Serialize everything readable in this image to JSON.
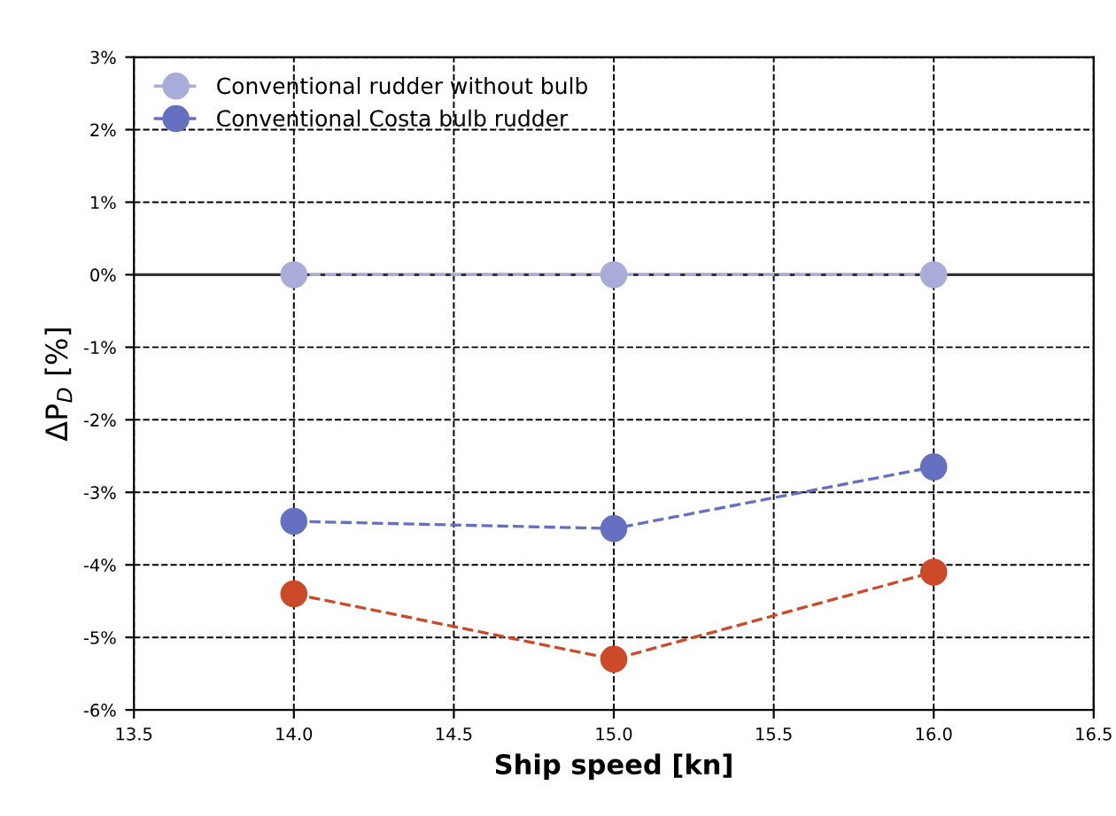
{
  "chart_data": {
    "type": "line",
    "xlabel": "Ship speed [kn]",
    "ylabel": "ΔP$_{D}$ [%]",
    "x": [
      14.0,
      15.0,
      16.0
    ],
    "series": [
      {
        "name": "Conventional rudder without bulb",
        "color": "#a9acd9",
        "values": [
          0,
          0,
          0
        ]
      },
      {
        "name": "Conventional Costa bulb rudder",
        "color": "#6670c0",
        "values": [
          -3.4,
          -3.5,
          -2.65
        ]
      },
      {
        "color": "#cc4a2a",
        "values": [
          -4.4,
          -5.3,
          -4.1
        ]
      }
    ],
    "xlim": [
      13.5,
      16.5
    ],
    "xticks": [
      {
        "value": 13.5,
        "label": "13.5"
      },
      {
        "value": 14,
        "label": "14.0"
      },
      {
        "value": 14.5,
        "label": "14.5"
      },
      {
        "value": 15,
        "label": "15.0"
      },
      {
        "value": 15.5,
        "label": "15.5"
      },
      {
        "value": 16,
        "label": "16.0"
      },
      {
        "value": 16.5,
        "label": "16.5"
      }
    ],
    "ylim": [
      -6,
      3
    ],
    "yticks": [
      {
        "value": -6,
        "label": "-6%"
      },
      {
        "value": -5,
        "label": "-5%"
      },
      {
        "value": -4,
        "label": "-4%"
      },
      {
        "value": -3,
        "label": "-3%"
      },
      {
        "value": -2,
        "label": "-2%"
      },
      {
        "value": -1,
        "label": "-1%"
      },
      {
        "value": 0,
        "label": "0%"
      },
      {
        "value": 1,
        "label": "1%"
      },
      {
        "value": 2,
        "label": "2%"
      },
      {
        "value": 3,
        "label": "3%"
      }
    ],
    "ref_lines": [
      {
        "axis": "y",
        "value": 0,
        "color": "#333333",
        "line_style": "solid"
      }
    ],
    "grid": true,
    "legend": "top left",
    "marker": "circle",
    "line_style": "dashed"
  }
}
